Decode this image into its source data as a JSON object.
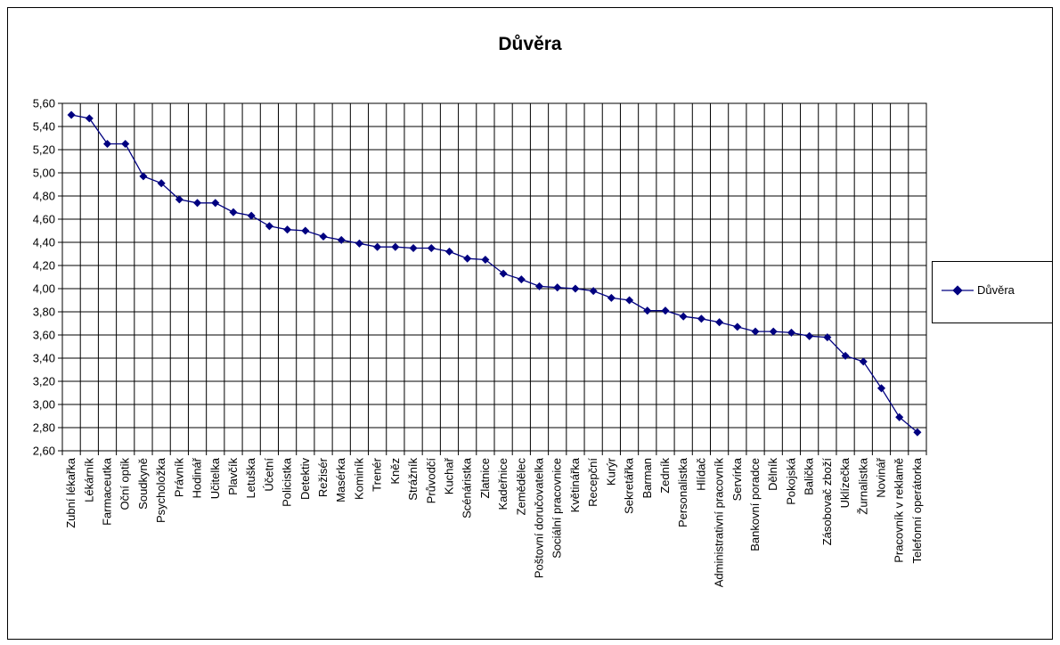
{
  "chart_data": {
    "type": "line",
    "title": "Důvěra",
    "xlabel": "",
    "ylabel": "",
    "ylim": [
      2.6,
      5.6
    ],
    "yticks": [
      "2,60",
      "2,80",
      "3,00",
      "3,20",
      "3,40",
      "3,60",
      "3,80",
      "4,00",
      "4,20",
      "4,40",
      "4,60",
      "4,80",
      "5,00",
      "5,20",
      "5,40",
      "5,60"
    ],
    "grid": true,
    "legend_position": "right",
    "series_color": "#000080",
    "categories": [
      "Zubní lékařka",
      "Lékárník",
      "Farmaceutka",
      "Oční optik",
      "Soudkyně",
      "Psycholožka",
      "Právník",
      "Hodinář",
      "Učitelka",
      "Plavčík",
      "Letuška",
      "Účetní",
      "Policistka",
      "Detektiv",
      "Režisér",
      "Masérka",
      "Kominík",
      "Trenér",
      "Kněz",
      "Strážník",
      "Průvodčí",
      "Kuchař",
      "Scénáristka",
      "Zlatnice",
      "Kadeřnice",
      "Zemědělec",
      "Poštovní doručovatelka",
      "Sociální pracovnice",
      "Květinářka",
      "Recepční",
      "Kurýr",
      "Sekretářka",
      "Barman",
      "Zedník",
      "Personalistka",
      "Hlídač",
      "Administrativní pracovník",
      "Servírka",
      "Bankovní poradce",
      "Dělník",
      "Pokojská",
      "Balička",
      "Zásobovač zboží",
      "Uklízečka",
      "Žurnalistka",
      "Novinář",
      "Pracovník v reklamě",
      "Telefonní operátorka"
    ],
    "series": [
      {
        "name": "Důvěra",
        "values": [
          5.5,
          5.47,
          5.25,
          5.25,
          4.97,
          4.91,
          4.77,
          4.74,
          4.74,
          4.66,
          4.63,
          4.54,
          4.51,
          4.5,
          4.45,
          4.42,
          4.39,
          4.36,
          4.36,
          4.35,
          4.35,
          4.32,
          4.26,
          4.25,
          4.13,
          4.08,
          4.02,
          4.01,
          4.0,
          3.98,
          3.92,
          3.9,
          3.81,
          3.81,
          3.76,
          3.74,
          3.71,
          3.67,
          3.63,
          3.63,
          3.62,
          3.59,
          3.58,
          3.42,
          3.37,
          3.14,
          2.89,
          2.76
        ]
      }
    ]
  }
}
